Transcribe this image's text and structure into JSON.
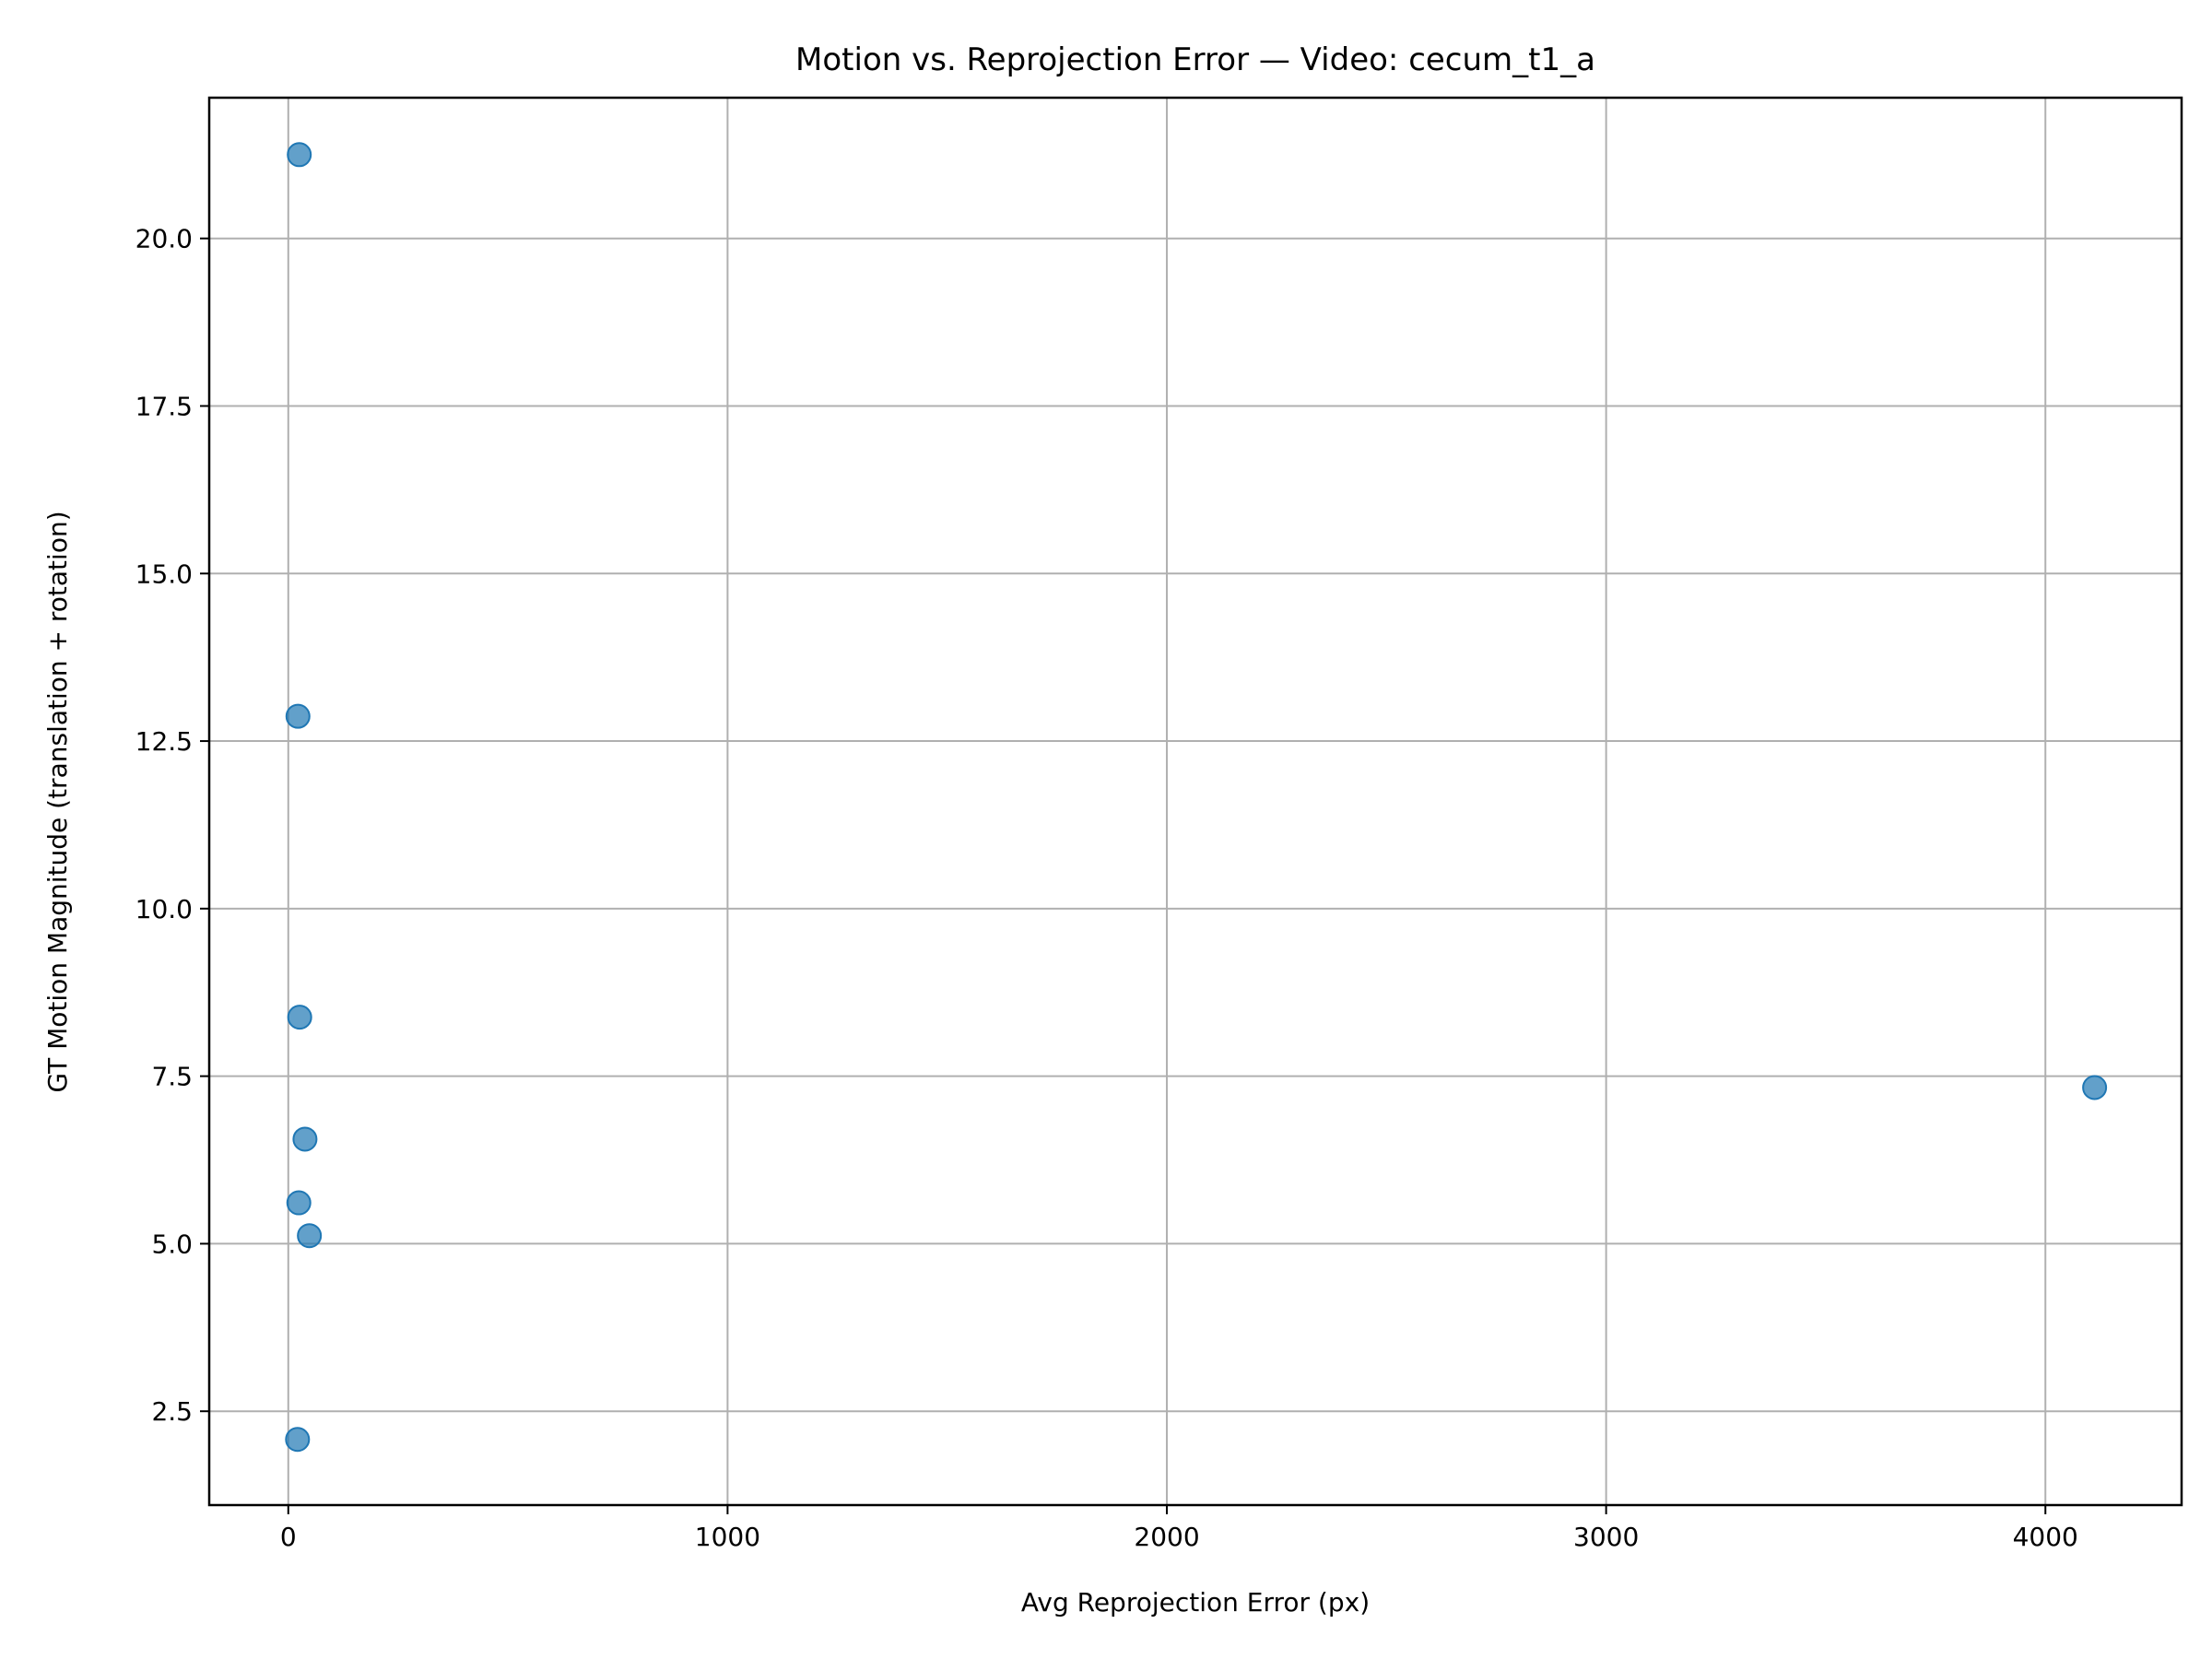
{
  "chart_data": {
    "type": "scatter",
    "title": "Motion vs. Reprojection Error — Video: cecum_t1_a",
    "xlabel": "Avg Reprojection Error (px)",
    "ylabel": "GT Motion Magnitude (translation + rotation)",
    "xlim": [
      -180,
      4310
    ],
    "ylim": [
      1.1,
      22.1
    ],
    "xticks": [
      0,
      1000,
      2000,
      3000,
      4000
    ],
    "xtick_labels": [
      "0",
      "1000",
      "2000",
      "3000",
      "4000"
    ],
    "yticks": [
      2.5,
      5.0,
      7.5,
      10.0,
      12.5,
      15.0,
      17.5,
      20.0
    ],
    "ytick_labels": [
      "2.5",
      "5.0",
      "7.5",
      "10.0",
      "12.5",
      "15.0",
      "17.5",
      "20.0"
    ],
    "grid": true,
    "marker_color": "#1f77b4",
    "points": [
      {
        "x": 25,
        "y": 21.25
      },
      {
        "x": 22,
        "y": 12.87
      },
      {
        "x": 26,
        "y": 8.38
      },
      {
        "x": 38,
        "y": 6.56
      },
      {
        "x": 24,
        "y": 5.61
      },
      {
        "x": 48,
        "y": 5.12
      },
      {
        "x": 21,
        "y": 2.08
      },
      {
        "x": 4112,
        "y": 7.33
      }
    ]
  }
}
